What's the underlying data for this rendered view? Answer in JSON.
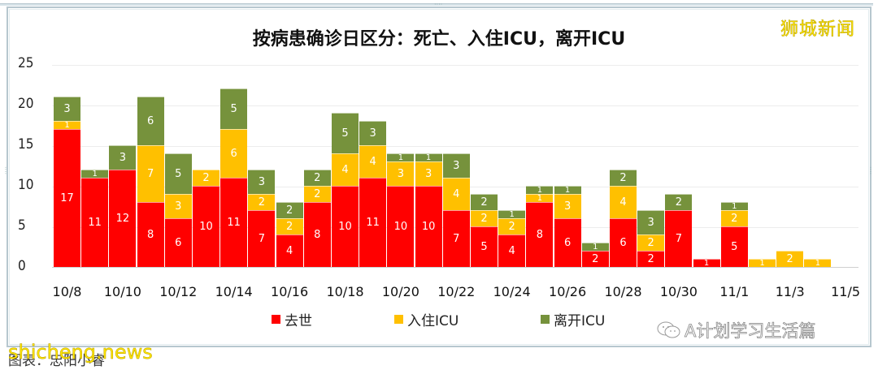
{
  "watermark_top": "狮城新闻",
  "watermark_bottom": "shicheng.news",
  "source_label": "图表：忠阳小睿",
  "wechat_label": "A计划学习生活篇",
  "colors": {
    "red": "#ff0000",
    "yellow": "#ffc000",
    "green": "#76923c"
  },
  "chart_data": {
    "type": "bar",
    "stacked": true,
    "title": "按病患确诊日区分：死亡、入住ICU，离开ICU",
    "xlabel": "",
    "ylabel": "",
    "ylim": [
      0,
      25
    ],
    "yticks": [
      0,
      5,
      10,
      15,
      20,
      25
    ],
    "grid": true,
    "legend_position": "bottom",
    "categories": [
      "10/8",
      "10/9",
      "10/10",
      "10/11",
      "10/12",
      "10/13",
      "10/14",
      "10/15",
      "10/16",
      "10/17",
      "10/18",
      "10/19",
      "10/20",
      "10/21",
      "10/22",
      "10/23",
      "10/24",
      "10/25",
      "10/26",
      "10/27",
      "10/28",
      "10/29",
      "10/30",
      "10/31",
      "11/1",
      "11/2",
      "11/3",
      "11/4",
      "11/5"
    ],
    "xtick_labels": [
      "10/8",
      "10/10",
      "10/12",
      "10/14",
      "10/16",
      "10/18",
      "10/20",
      "10/22",
      "10/24",
      "10/26",
      "10/28",
      "10/30",
      "11/1",
      "11/3",
      "11/5"
    ],
    "series": [
      {
        "name": "去世",
        "color": "#ff0000",
        "values": [
          17,
          11,
          12,
          8,
          6,
          10,
          11,
          7,
          4,
          8,
          10,
          11,
          10,
          10,
          7,
          5,
          4,
          8,
          6,
          2,
          6,
          2,
          7,
          1,
          5,
          0,
          0,
          0,
          0
        ]
      },
      {
        "name": "入住ICU",
        "color": "#ffc000",
        "values": [
          1,
          0,
          0,
          7,
          3,
          2,
          6,
          2,
          2,
          2,
          4,
          4,
          3,
          3,
          4,
          2,
          2,
          1,
          3,
          0,
          4,
          2,
          0,
          0,
          2,
          1,
          2,
          1,
          0
        ]
      },
      {
        "name": "离开ICU",
        "color": "#76923c",
        "values": [
          3,
          1,
          3,
          6,
          5,
          0,
          5,
          3,
          2,
          2,
          5,
          3,
          1,
          1,
          3,
          2,
          1,
          1,
          1,
          1,
          2,
          3,
          2,
          0,
          1,
          0,
          0,
          0,
          0
        ]
      }
    ]
  }
}
